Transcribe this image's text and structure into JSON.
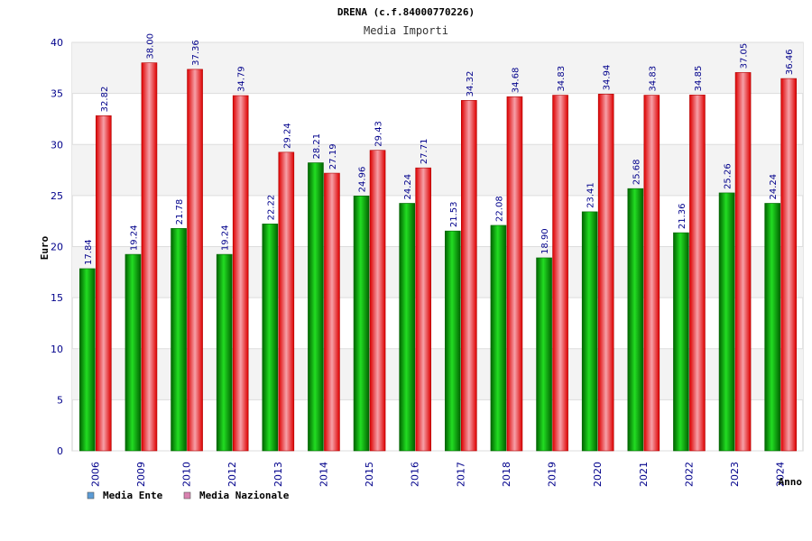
{
  "chart_data": {
    "type": "bar",
    "title": "DRENA (c.f.84000770226)",
    "subtitle": "Media Importi",
    "ylabel": "Euro",
    "xlabel": "Anno",
    "ylim": [
      0,
      40
    ],
    "yticks": [
      0,
      5,
      10,
      15,
      20,
      25,
      30,
      35,
      40
    ],
    "categories": [
      "2006",
      "2009",
      "2010",
      "2012",
      "2013",
      "2014",
      "2015",
      "2016",
      "2017",
      "2018",
      "2019",
      "2020",
      "2021",
      "2022",
      "2023",
      "2024"
    ],
    "series": [
      {
        "name": "Media Ente",
        "color": "#00aa00",
        "values": [
          17.84,
          19.24,
          21.78,
          19.24,
          22.22,
          28.21,
          24.96,
          24.24,
          21.53,
          22.08,
          18.9,
          23.41,
          25.68,
          21.36,
          25.26,
          24.24
        ],
        "labels": [
          "17.84",
          "19.24",
          "21.78",
          "19.24",
          "22.22",
          "28.21",
          "24.96",
          "24.24",
          "21.53",
          "22.08",
          "18.90",
          "23.41",
          "25.68",
          "21.36",
          "25.26",
          "24.24"
        ]
      },
      {
        "name": "Media Nazionale",
        "color": "#e8001c",
        "values": [
          32.82,
          38.0,
          37.36,
          34.79,
          29.24,
          27.19,
          29.43,
          27.71,
          34.32,
          34.68,
          34.83,
          34.94,
          34.83,
          34.85,
          37.05,
          36.46
        ],
        "labels": [
          "32.82",
          "38.00",
          "37.36",
          "34.79",
          "29.24",
          "27.19",
          "29.43",
          "27.71",
          "34.32",
          "34.68",
          "34.83",
          "34.94",
          "34.83",
          "34.85",
          "37.05",
          "36.46"
        ]
      }
    ],
    "legend": [
      {
        "label": "Media Ente",
        "color": "#5b9bd5"
      },
      {
        "label": "Media Nazionale",
        "color": "#d982b0"
      }
    ],
    "legend_position": "bottom-left",
    "grid": true
  }
}
